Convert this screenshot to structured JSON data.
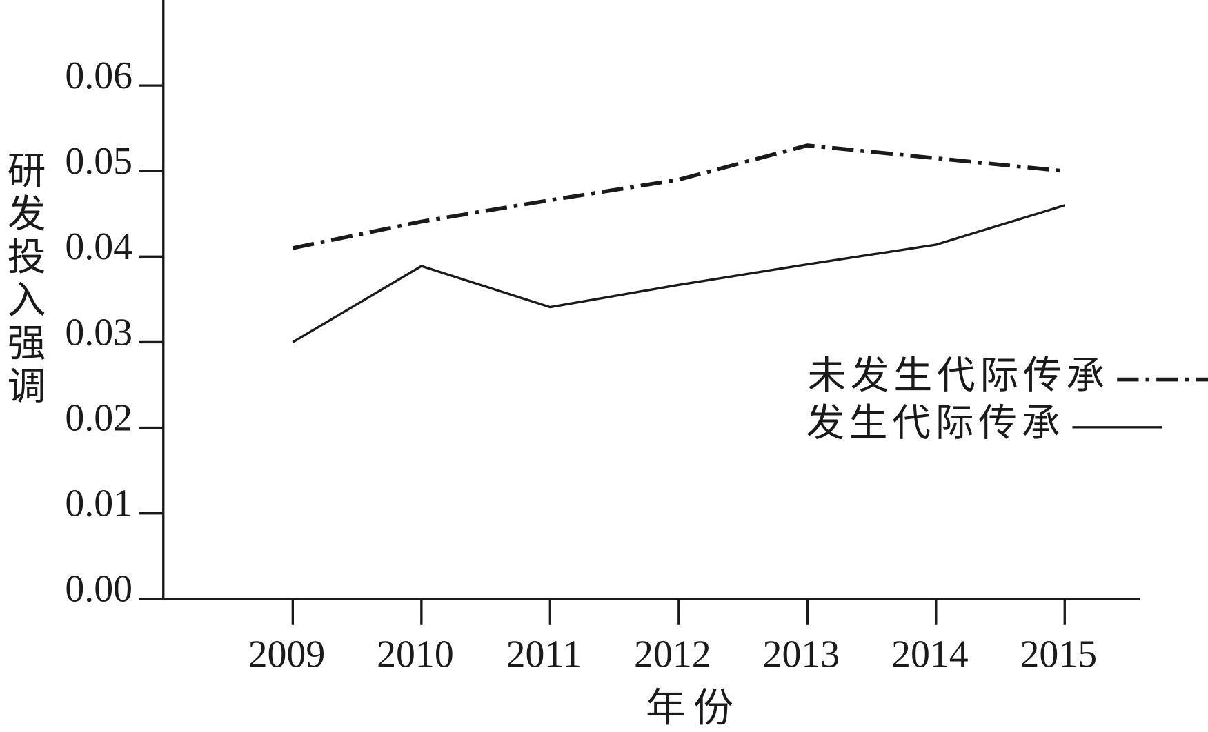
{
  "chart_data": {
    "type": "line",
    "x_label": "年份",
    "y_label": "研发投入强调",
    "categories": [
      "2009",
      "2010",
      "2011",
      "2012",
      "2013",
      "2014",
      "2015"
    ],
    "series": [
      {
        "name": "未发生代际传承",
        "color": "#1a1a1a",
        "style": "dashdot",
        "values": [
          0.041,
          0.0441,
          0.0466,
          0.049,
          0.053,
          0.0515,
          0.05
        ]
      },
      {
        "name": "发生代际传承",
        "color": "#1a1a1a",
        "style": "solid",
        "values": [
          0.03,
          0.0389,
          0.0341,
          0.0367,
          0.0391,
          0.0414,
          0.046
        ]
      }
    ],
    "ylim": [
      0,
      0.07
    ],
    "yticks": [
      {
        "value": 0,
        "label": "0.00"
      },
      {
        "value": 0.01,
        "label": "0.01"
      },
      {
        "value": 0.02,
        "label": "0.02"
      },
      {
        "value": 0.03,
        "label": "0.03"
      },
      {
        "value": 0.04,
        "label": "0.04"
      },
      {
        "value": 0.05,
        "label": "0.05"
      },
      {
        "value": 0.06,
        "label": "0.06"
      }
    ],
    "grid": false
  }
}
